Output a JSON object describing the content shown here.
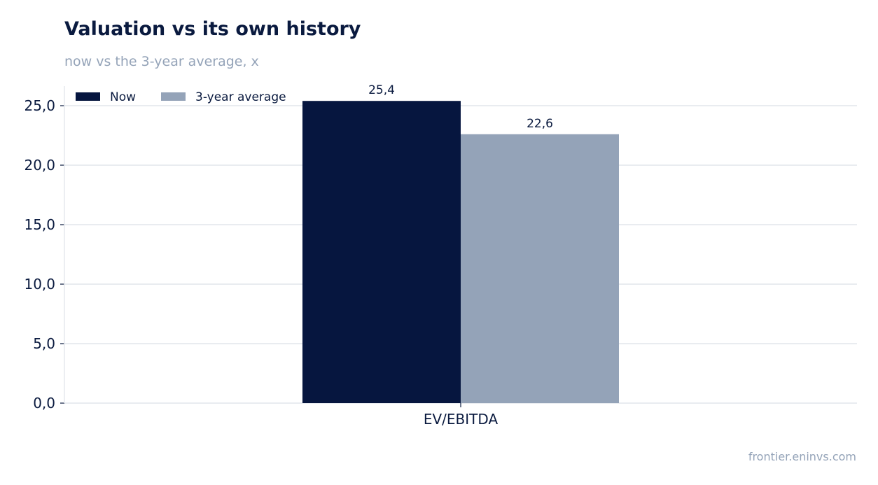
{
  "title": "Valuation vs its own history",
  "subtitle": "now vs the 3-year average, x",
  "source": "frontier.eninvs.com",
  "chart_data": {
    "type": "bar",
    "categories": [
      "EV/EBITDA"
    ],
    "series": [
      {
        "name": "Now",
        "values": [
          25.4
        ],
        "labels": [
          "25,4"
        ],
        "color": "#06163f"
      },
      {
        "name": "3-year average",
        "values": [
          22.6
        ],
        "labels": [
          "22,6"
        ],
        "color": "#94a3b8"
      }
    ],
    "ylim": [
      0,
      25
    ],
    "yticks": [
      0,
      5,
      10,
      15,
      20,
      25
    ],
    "ytick_labels": [
      "0,0",
      "5,0",
      "10,0",
      "15,0",
      "20,0",
      "25,0"
    ],
    "grid": true,
    "legend": "top-left"
  }
}
